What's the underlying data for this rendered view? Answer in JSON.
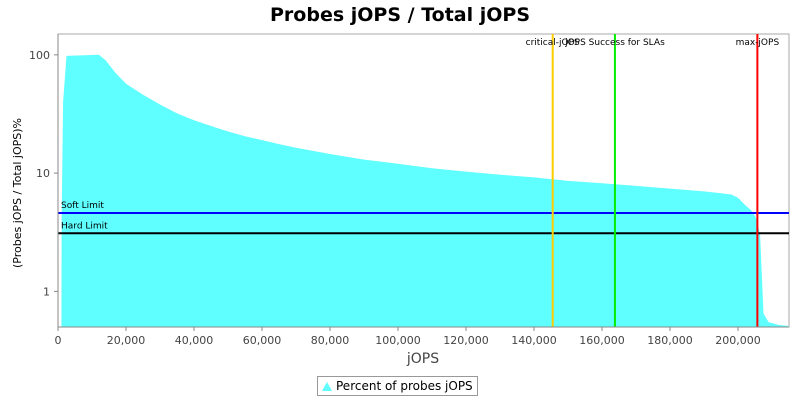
{
  "chart_data": {
    "type": "area",
    "title": "Probes jOPS / Total jOPS",
    "xlabel": "jOPS",
    "ylabel": "(Probes jOPS / Total jOPS)%",
    "y_scale": "log",
    "xlim": [
      0,
      215000
    ],
    "ylim": [
      0.5,
      150
    ],
    "x_ticks": [
      0,
      20000,
      40000,
      60000,
      80000,
      100000,
      120000,
      140000,
      160000,
      180000,
      200000
    ],
    "x_tick_labels": [
      "0",
      "20,000",
      "40,000",
      "60,000",
      "80,000",
      "100,000",
      "120,000",
      "140,000",
      "160,000",
      "180,000",
      "200,000"
    ],
    "y_ticks": [
      1,
      10,
      100
    ],
    "y_tick_labels": [
      "1",
      "10",
      "100"
    ],
    "grid": false,
    "legend_position": "bottom",
    "series": [
      {
        "name": "Percent of probes jOPS",
        "color": "#5ffeff",
        "points": [
          [
            1000,
            0.5
          ],
          [
            1100,
            4.5
          ],
          [
            1500,
            40
          ],
          [
            2500,
            98
          ],
          [
            12000,
            100
          ],
          [
            14000,
            90
          ],
          [
            17000,
            70
          ],
          [
            20000,
            57
          ],
          [
            25000,
            46
          ],
          [
            30000,
            38
          ],
          [
            35000,
            32
          ],
          [
            40000,
            28
          ],
          [
            45000,
            25
          ],
          [
            50000,
            22.5
          ],
          [
            55000,
            20.5
          ],
          [
            60000,
            19
          ],
          [
            65000,
            17.6
          ],
          [
            70000,
            16.4
          ],
          [
            80000,
            14.5
          ],
          [
            90000,
            13
          ],
          [
            100000,
            12
          ],
          [
            110000,
            11
          ],
          [
            120000,
            10.3
          ],
          [
            130000,
            9.7
          ],
          [
            140000,
            9.2
          ],
          [
            145000,
            8.9
          ],
          [
            150000,
            8.6
          ],
          [
            160000,
            8.2
          ],
          [
            170000,
            7.8
          ],
          [
            180000,
            7.4
          ],
          [
            190000,
            7.0
          ],
          [
            195000,
            6.75
          ],
          [
            198000,
            6.6
          ],
          [
            200000,
            6.2
          ],
          [
            202000,
            5.4
          ],
          [
            204000,
            4.8
          ],
          [
            205500,
            4.1
          ],
          [
            206500,
            3.0
          ],
          [
            207500,
            0.65
          ],
          [
            209000,
            0.55
          ],
          [
            212000,
            0.52
          ],
          [
            215000,
            0.51
          ]
        ]
      }
    ],
    "h_lines": [
      {
        "label": "Soft Limit",
        "y": 4.6,
        "color": "#0000ff"
      },
      {
        "label": "Hard Limit",
        "y": 3.1,
        "color": "#000000"
      }
    ],
    "v_lines": [
      {
        "label": "critical-jOPS",
        "x": 145500,
        "color": "#ffcc00"
      },
      {
        "label": "jOPS Success for SLAs",
        "x": 163800,
        "color": "#00ee00"
      },
      {
        "label": "max-jOPS",
        "x": 205700,
        "color": "#ff0000"
      }
    ]
  }
}
